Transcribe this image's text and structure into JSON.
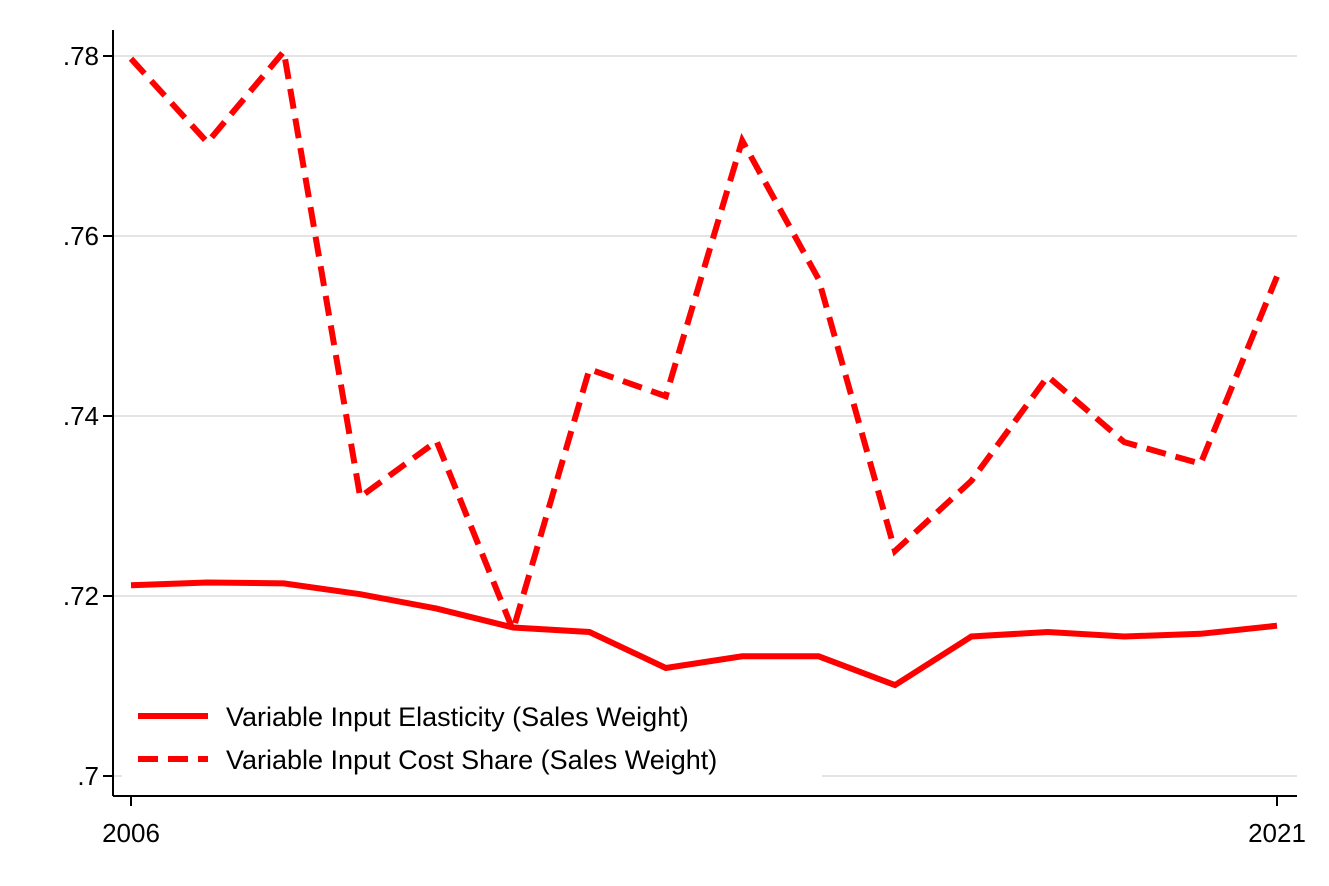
{
  "chart_data": {
    "type": "line",
    "title": "",
    "xlabel": "",
    "ylabel": "",
    "x": [
      2006,
      2007,
      2008,
      2009,
      2010,
      2011,
      2012,
      2013,
      2014,
      2015,
      2016,
      2017,
      2018,
      2019,
      2020,
      2021
    ],
    "xlim": [
      2006,
      2021
    ],
    "ylim": [
      0.7,
      0.78
    ],
    "x_ticks": [
      {
        "value": 2006,
        "label": "2006"
      },
      {
        "value": 2021,
        "label": "2021"
      }
    ],
    "y_ticks": [
      {
        "value": 0.7,
        "label": ".7"
      },
      {
        "value": 0.72,
        "label": ".72"
      },
      {
        "value": 0.74,
        "label": ".74"
      },
      {
        "value": 0.76,
        "label": ".76"
      },
      {
        "value": 0.78,
        "label": ".78"
      }
    ],
    "grid": true,
    "legend_position": "bottom-left",
    "series": [
      {
        "name": "Variable Input Elasticity (Sales Weight)",
        "color": "#ff0000",
        "style": "solid",
        "values": [
          0.7212,
          0.7215,
          0.7214,
          0.7202,
          0.7186,
          0.7165,
          0.716,
          0.712,
          0.7133,
          0.7133,
          0.7101,
          0.7155,
          0.716,
          0.7155,
          0.7158,
          0.7167
        ]
      },
      {
        "name": "Variable Input Cost Share (Sales Weight)",
        "color": "#ff0000",
        "style": "dashed",
        "values": [
          0.7797,
          0.7704,
          0.7805,
          0.731,
          0.7372,
          0.7162,
          0.7452,
          0.7422,
          0.7706,
          0.7552,
          0.725,
          0.7328,
          0.7444,
          0.7371,
          0.7347,
          0.7555
        ]
      }
    ]
  }
}
